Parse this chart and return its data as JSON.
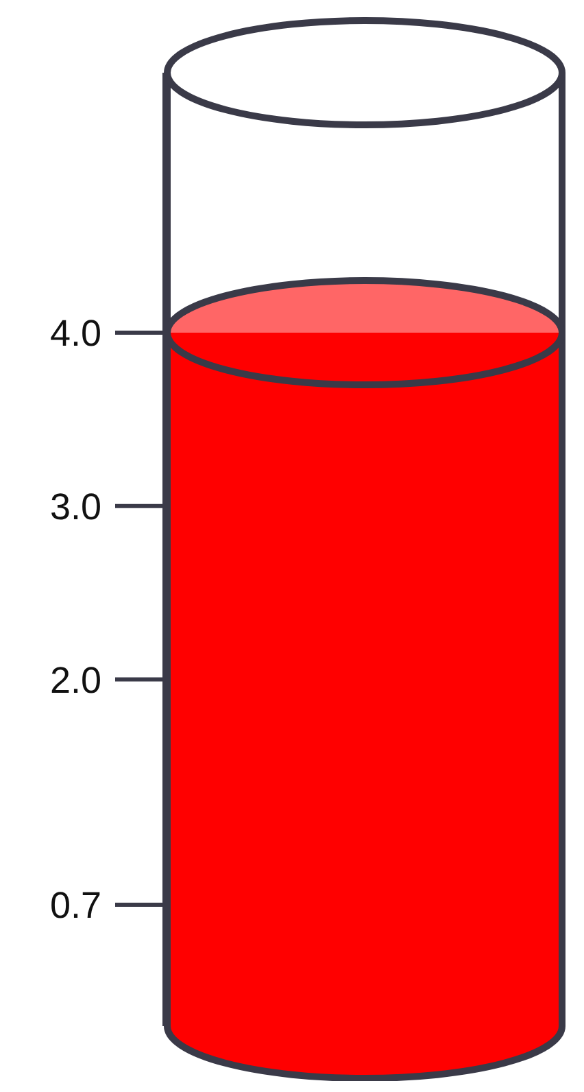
{
  "chart_data": {
    "type": "bar",
    "categories": [
      null
    ],
    "values": [
      4.0
    ],
    "color": "#ff0000",
    "ylim": [
      0,
      5.5
    ],
    "yticks": [
      {
        "value": 4,
        "label": "4.0"
      },
      {
        "value": 3,
        "label": "3.0"
      },
      {
        "value": 2,
        "label": "2.0"
      },
      0.7
    ]
  }
}
